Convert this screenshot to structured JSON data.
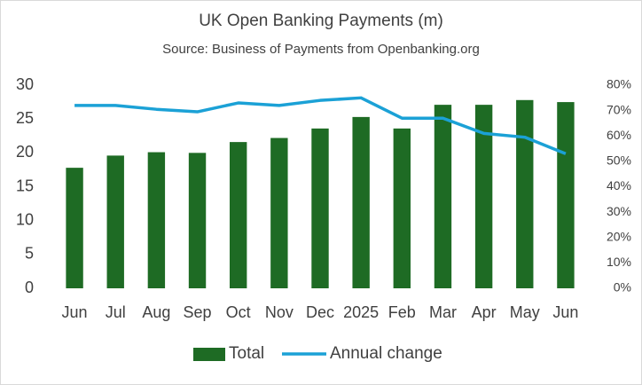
{
  "chart_data": {
    "type": "combo",
    "title": "UK Open Banking Payments (m)",
    "subtitle": "Source: Business of Payments from Openbanking.org",
    "categories": [
      "Jun",
      "Jul",
      "Aug",
      "Sep",
      "Oct",
      "Nov",
      "Dec",
      "2025",
      "Feb",
      "Mar",
      "Apr",
      "May",
      "Jun"
    ],
    "series": [
      {
        "name": "Total",
        "type": "bar",
        "color": "#1e6b24",
        "values": [
          17.8,
          19.6,
          20.1,
          20.0,
          21.6,
          22.2,
          23.6,
          25.3,
          23.6,
          27.1,
          27.1,
          27.8,
          27.5
        ]
      },
      {
        "name": "Annual change",
        "type": "line",
        "axis": "y2",
        "color": "#1ba1d6",
        "values": [
          72,
          72,
          70.5,
          69.5,
          73,
          72,
          74,
          75,
          67,
          67,
          61,
          59.5,
          53
        ]
      }
    ],
    "ylim": [
      0,
      30
    ],
    "yticks": [
      0,
      5,
      10,
      15,
      20,
      25,
      30
    ],
    "y2lim": [
      0,
      80
    ],
    "y2ticks": [
      {
        "value": 0,
        "label": "0%"
      },
      {
        "value": 10,
        "label": "10%"
      },
      {
        "value": 20,
        "label": "20%"
      },
      {
        "value": 30,
        "label": "30%"
      },
      {
        "value": 40,
        "label": "40%"
      },
      {
        "value": 50,
        "label": "50%"
      },
      {
        "value": 60,
        "label": "60%"
      },
      {
        "value": 70,
        "label": "70%"
      },
      {
        "value": 80,
        "label": "80%"
      }
    ],
    "grid": false,
    "legend": "bottom"
  }
}
